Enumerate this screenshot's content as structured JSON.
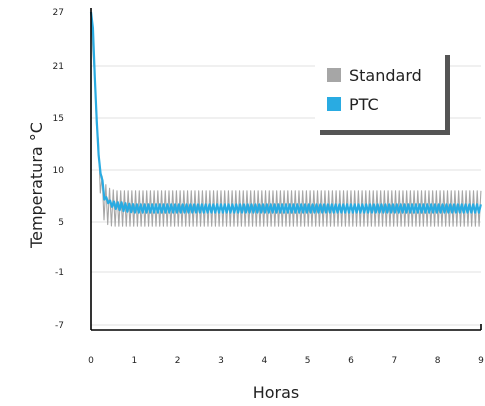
{
  "chart_data": {
    "type": "line",
    "xlabel": "Horas",
    "ylabel": "Temperatura °C",
    "xlim": [
      0,
      9
    ],
    "ylim": [
      -10,
      27
    ],
    "x_ticks": [
      0,
      1,
      2,
      3,
      4,
      5,
      6,
      7,
      8,
      9
    ],
    "x_tick_labels": [
      "0",
      "1",
      "2",
      "3",
      "4",
      "5",
      "6",
      "7",
      "8",
      "9"
    ],
    "y_ticks": [
      27,
      21,
      15,
      10,
      5,
      -1,
      -7
    ],
    "y_tick_labels": [
      "27",
      "21",
      "15",
      "10",
      "5",
      "-1",
      "-7"
    ],
    "grid": "horizontal",
    "legend": {
      "position": "top-right",
      "entries": [
        {
          "name": "Standard",
          "color": "#a6a6a6"
        },
        {
          "name": "PTC",
          "color": "#29abe2"
        }
      ]
    },
    "series": [
      {
        "name": "Standard",
        "color": "#a6a6a6",
        "pattern": "oscillation",
        "x": [
          0,
          0.08,
          0.15,
          0.2,
          0.25,
          0.3,
          0.4,
          0.5,
          0.6,
          0.8,
          1.0,
          9.0
        ],
        "upper": [
          27,
          20,
          14,
          11.5,
          9.5,
          8.8,
          8.3,
          8.1,
          8.0,
          8.0,
          8.0,
          8.0
        ],
        "lower": [
          27,
          19,
          12,
          8.5,
          6.0,
          5.2,
          4.6,
          4.5,
          4.5,
          4.5,
          4.5,
          4.5
        ],
        "period_hours": 0.0857
      },
      {
        "name": "PTC",
        "color": "#29abe2",
        "pattern": "oscillation",
        "x": [
          0,
          0.05,
          0.1,
          0.15,
          0.2,
          0.25,
          0.3,
          0.35,
          0.4,
          0.5,
          0.6,
          0.7,
          0.8,
          1.0,
          9.0
        ],
        "upper": [
          27,
          25,
          18,
          13,
          10,
          9.5,
          7.8,
          7.4,
          7.1,
          7.0,
          6.9,
          6.9,
          6.8,
          6.7,
          6.7
        ],
        "lower": [
          27,
          25,
          18,
          13,
          10,
          9.2,
          7.2,
          7.0,
          6.8,
          6.4,
          6.2,
          6.1,
          6.0,
          5.9,
          5.9
        ],
        "period_hours": 0.0882
      }
    ]
  }
}
